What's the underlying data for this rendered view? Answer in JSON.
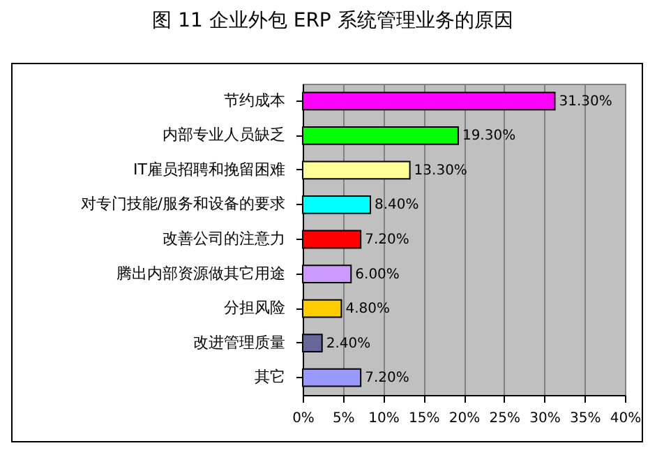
{
  "chart_data": {
    "type": "bar",
    "title": "图 11 企业外包 ERP 系统管理业务的原因",
    "orientation": "horizontal",
    "categories": [
      "节约成本",
      "内部专业人员缺乏",
      "IT雇员招聘和挽留困难",
      "对专门技能/服务和设备的要求",
      "改善公司的注意力",
      "腾出内部资源做其它用途",
      "分担风险",
      "改进管理质量",
      "其它"
    ],
    "values": [
      31.3,
      19.3,
      13.3,
      8.4,
      7.2,
      6.0,
      4.8,
      2.4,
      7.2
    ],
    "colors": [
      "#ff00ff",
      "#00ff00",
      "#ffff99",
      "#00ffff",
      "#ff0000",
      "#cc99ff",
      "#ffcc00",
      "#666699",
      "#9999ff"
    ],
    "value_labels": [
      "31.30%",
      "19.30%",
      "13.30%",
      "8.40%",
      "7.20%",
      "6.00%",
      "4.80%",
      "2.40%",
      "7.20%"
    ],
    "xlim": [
      0,
      40
    ],
    "xticks": [
      {
        "value": 0,
        "label": "0%"
      },
      {
        "value": 5,
        "label": "5%"
      },
      {
        "value": 10,
        "label": "10%"
      },
      {
        "value": 15,
        "label": "15%"
      },
      {
        "value": 20,
        "label": "20%"
      },
      {
        "value": 25,
        "label": "25%"
      },
      {
        "value": 30,
        "label": "30%"
      },
      {
        "value": 35,
        "label": "35%"
      },
      {
        "value": 40,
        "label": "40%"
      }
    ],
    "grid": "x"
  }
}
